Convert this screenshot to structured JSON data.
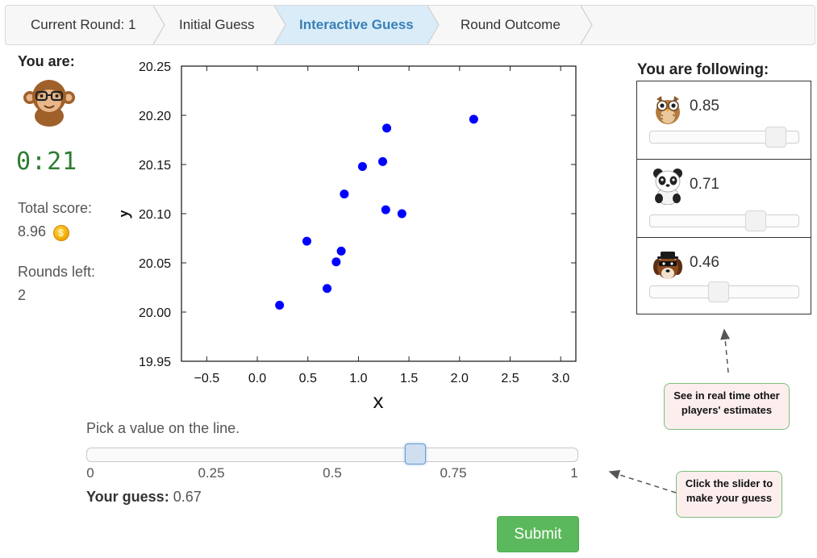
{
  "tabs": [
    {
      "label": "Current Round: 1",
      "active": false
    },
    {
      "label": "Initial Guess",
      "active": false
    },
    {
      "label": "Interactive Guess",
      "active": true
    },
    {
      "label": "Round Outcome",
      "active": false
    }
  ],
  "sidebar": {
    "you_are_label": "You are:",
    "avatar_icon": "monkey-with-glasses-icon",
    "timer": "0:21",
    "total_score_label": "Total score:",
    "total_score_value": "8.96",
    "coin_icon": "gold-coin-icon",
    "rounds_left_label": "Rounds left:",
    "rounds_left_value": "2"
  },
  "chart_data": {
    "type": "scatter",
    "xlabel": "x",
    "ylabel": "y",
    "xlim": [
      -0.75,
      3.15
    ],
    "ylim": [
      19.95,
      20.25
    ],
    "xticks": [
      "−0.5",
      "0.0",
      "0.5",
      "1.0",
      "1.5",
      "2.0",
      "2.5",
      "3.0"
    ],
    "xtick_values": [
      -0.5,
      0.0,
      0.5,
      1.0,
      1.5,
      2.0,
      2.5,
      3.0
    ],
    "yticks": [
      "19.95",
      "20.00",
      "20.05",
      "20.10",
      "20.15",
      "20.20",
      "20.25"
    ],
    "ytick_values": [
      19.95,
      20.0,
      20.05,
      20.1,
      20.15,
      20.2,
      20.25
    ],
    "point_color": "#0000ff",
    "points": [
      {
        "x": 0.22,
        "y": 20.007
      },
      {
        "x": 0.49,
        "y": 20.072
      },
      {
        "x": 0.69,
        "y": 20.024
      },
      {
        "x": 0.78,
        "y": 20.051
      },
      {
        "x": 0.83,
        "y": 20.062
      },
      {
        "x": 0.86,
        "y": 20.12
      },
      {
        "x": 1.04,
        "y": 20.148
      },
      {
        "x": 1.24,
        "y": 20.153
      },
      {
        "x": 1.27,
        "y": 20.104
      },
      {
        "x": 1.28,
        "y": 20.187
      },
      {
        "x": 1.43,
        "y": 20.1
      },
      {
        "x": 2.14,
        "y": 20.196
      }
    ]
  },
  "guess": {
    "prompt": "Pick a value on the line.",
    "value": 0.67,
    "tick_labels": [
      "0",
      "0.25",
      "0.5",
      "0.75",
      "1"
    ],
    "your_guess_label": "Your guess:",
    "your_guess_value": "0.67",
    "submit_label": "Submit",
    "submit_color": "#5cb85c"
  },
  "following": {
    "title": "You are following:",
    "players": [
      {
        "icon": "owl-icon",
        "value": "0.85",
        "level": 0.85
      },
      {
        "icon": "panda-icon",
        "value": "0.71",
        "level": 0.71
      },
      {
        "icon": "bandit-dog-icon",
        "value": "0.46",
        "level": 0.46
      }
    ]
  },
  "callouts": {
    "realtime": "See in real time other players' estimates",
    "slider_hint": "Click the slider to make your guess"
  },
  "colors": {
    "active_tab_bg": "#d9ecf8",
    "active_tab_text": "#3a7fb5",
    "timer": "#2e7d32",
    "callout_bg": "#fdeeee",
    "callout_border": "#7cbf7c"
  }
}
